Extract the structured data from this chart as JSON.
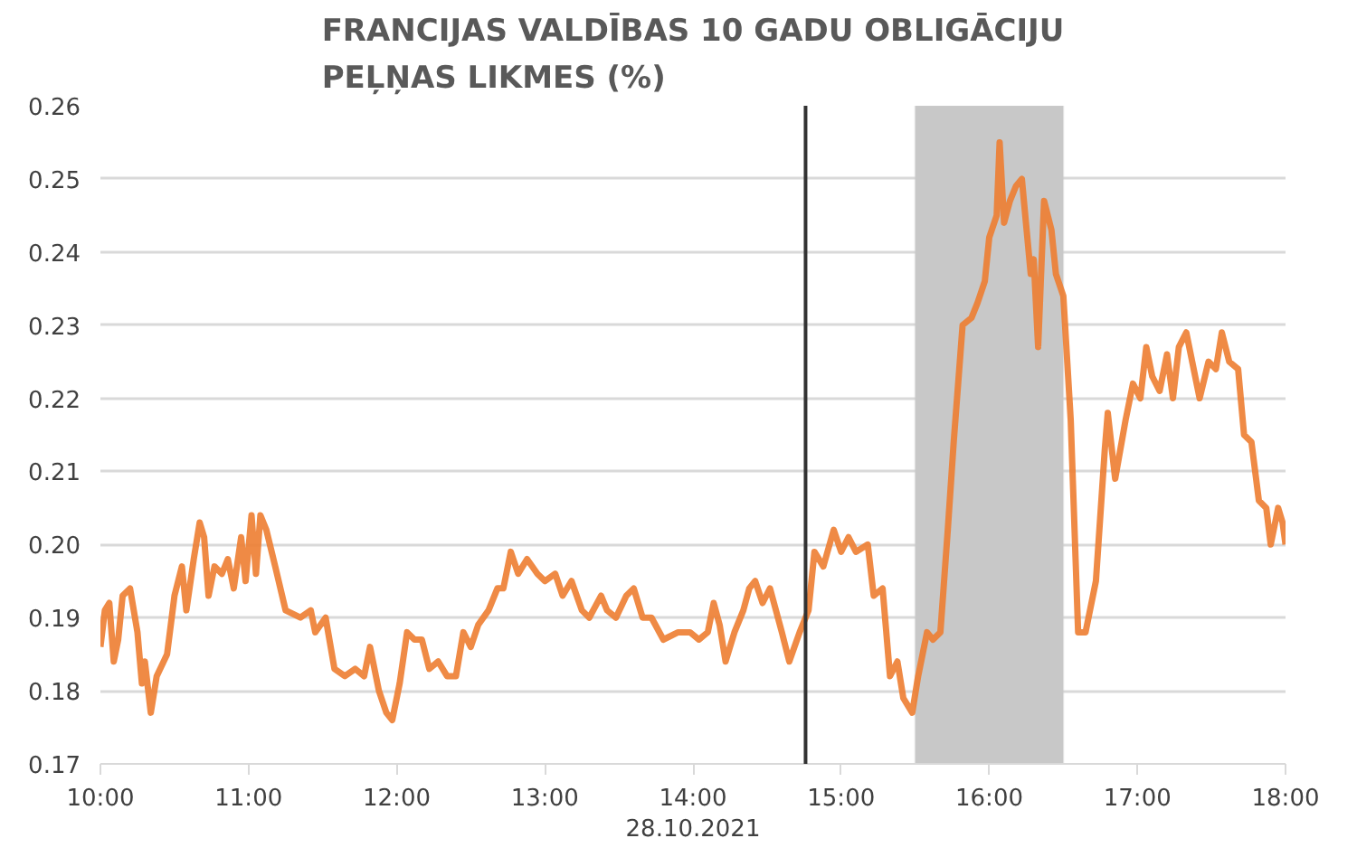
{
  "chart_data": {
    "type": "line",
    "title": "FRANCIJAS VALDĪBAS 10 GADU OBLIGĀCIJU\nPEĻŅAS LIKMES (%)",
    "xlabel": "28.10.2021",
    "x": [
      10.0,
      10.03,
      10.06,
      10.09,
      10.12,
      10.15,
      10.2,
      10.25,
      10.28,
      10.3,
      10.34,
      10.38,
      10.45,
      10.5,
      10.55,
      10.58,
      10.63,
      10.67,
      10.7,
      10.73,
      10.77,
      10.82,
      10.86,
      10.9,
      10.95,
      10.98,
      11.02,
      11.05,
      11.08,
      11.12,
      11.18,
      11.25,
      11.35,
      11.42,
      11.45,
      11.52,
      11.58,
      11.65,
      11.72,
      11.78,
      11.82,
      11.88,
      11.93,
      11.97,
      12.02,
      12.07,
      12.12,
      12.17,
      12.22,
      12.28,
      12.34,
      12.4,
      12.45,
      12.5,
      12.55,
      12.62,
      12.68,
      12.72,
      12.77,
      12.82,
      12.88,
      12.95,
      13.0,
      13.07,
      13.12,
      13.18,
      13.25,
      13.3,
      13.38,
      13.42,
      13.48,
      13.55,
      13.6,
      13.66,
      13.72,
      13.8,
      13.9,
      13.98,
      14.04,
      14.1,
      14.14,
      14.18,
      14.22,
      14.28,
      14.34,
      14.38,
      14.42,
      14.47,
      14.52,
      14.6,
      14.65,
      14.72,
      14.78,
      14.82,
      14.88,
      14.95,
      15.0,
      15.05,
      15.1,
      15.18,
      15.22,
      15.28,
      15.33,
      15.38,
      15.42,
      15.48,
      15.52,
      15.58,
      15.62,
      15.67,
      15.72,
      15.76,
      15.82,
      15.88,
      15.92,
      15.97,
      16.0,
      16.05,
      16.07,
      16.1,
      16.14,
      16.18,
      16.22,
      16.28,
      16.3,
      16.33,
      16.37,
      16.42,
      16.45,
      16.5,
      16.55,
      16.6,
      16.65,
      16.72,
      16.78,
      16.8,
      16.85,
      16.92,
      16.97,
      17.02,
      17.06,
      17.1,
      17.15,
      17.2,
      17.24,
      17.28,
      17.33,
      17.38,
      17.42,
      17.48,
      17.53,
      17.57,
      17.62,
      17.68,
      17.72,
      17.77,
      17.82,
      17.87,
      17.9,
      17.95,
      17.98,
      18.0
    ],
    "series": [
      {
        "color": "#ed7d31",
        "values": [
          0.186,
          0.191,
          0.192,
          0.184,
          0.187,
          0.193,
          0.194,
          0.188,
          0.181,
          0.184,
          0.177,
          0.182,
          0.185,
          0.193,
          0.197,
          0.191,
          0.198,
          0.203,
          0.201,
          0.193,
          0.197,
          0.196,
          0.198,
          0.194,
          0.201,
          0.195,
          0.204,
          0.196,
          0.204,
          0.202,
          0.197,
          0.191,
          0.19,
          0.191,
          0.188,
          0.19,
          0.183,
          0.182,
          0.183,
          0.182,
          0.186,
          0.18,
          0.177,
          0.176,
          0.181,
          0.188,
          0.187,
          0.187,
          0.183,
          0.184,
          0.182,
          0.182,
          0.188,
          0.186,
          0.189,
          0.191,
          0.194,
          0.194,
          0.199,
          0.196,
          0.198,
          0.196,
          0.195,
          0.196,
          0.193,
          0.195,
          0.191,
          0.19,
          0.193,
          0.191,
          0.19,
          0.193,
          0.194,
          0.19,
          0.19,
          0.187,
          0.188,
          0.188,
          0.187,
          0.188,
          0.192,
          0.189,
          0.184,
          0.188,
          0.191,
          0.194,
          0.195,
          0.192,
          0.194,
          0.188,
          0.184,
          0.188,
          0.191,
          0.199,
          0.197,
          0.202,
          0.199,
          0.201,
          0.199,
          0.2,
          0.193,
          0.194,
          0.182,
          0.184,
          0.179,
          0.177,
          0.182,
          0.188,
          0.187,
          0.188,
          0.202,
          0.214,
          0.23,
          0.231,
          0.233,
          0.236,
          0.242,
          0.245,
          0.255,
          0.244,
          0.247,
          0.249,
          0.25,
          0.237,
          0.239,
          0.227,
          0.247,
          0.243,
          0.237,
          0.234,
          0.217,
          0.188,
          0.188,
          0.195,
          0.213,
          0.218,
          0.209,
          0.217,
          0.222,
          0.22,
          0.227,
          0.223,
          0.221,
          0.226,
          0.22,
          0.227,
          0.229,
          0.224,
          0.22,
          0.225,
          0.224,
          0.229,
          0.225,
          0.224,
          0.215,
          0.214,
          0.206,
          0.205,
          0.2,
          0.205,
          0.203,
          0.2
        ]
      }
    ],
    "xlim": [
      10,
      18
    ],
    "ylim": [
      0.17,
      0.26
    ],
    "xticks": [
      {
        "value": 10,
        "label": "10:00"
      },
      {
        "value": 11,
        "label": "11:00"
      },
      {
        "value": 12,
        "label": "12:00"
      },
      {
        "value": 13,
        "label": "13:00"
      },
      {
        "value": 14,
        "label": "14:00"
      },
      {
        "value": 15,
        "label": "15:00"
      },
      {
        "value": 16,
        "label": "16:00"
      },
      {
        "value": 17,
        "label": "17:00"
      },
      {
        "value": 18,
        "label": "18:00"
      }
    ],
    "yticks": [
      {
        "value": 0.17,
        "label": "0.17"
      },
      {
        "value": 0.18,
        "label": "0.18"
      },
      {
        "value": 0.19,
        "label": "0.19"
      },
      {
        "value": 0.2,
        "label": "0.20"
      },
      {
        "value": 0.21,
        "label": "0.21"
      },
      {
        "value": 0.22,
        "label": "0.22"
      },
      {
        "value": 0.23,
        "label": "0.23"
      },
      {
        "value": 0.24,
        "label": "0.24"
      },
      {
        "value": 0.25,
        "label": "0.25"
      },
      {
        "value": 0.26,
        "label": "0.26"
      }
    ],
    "ref_lines": [
      {
        "axis": "x",
        "value": 14.76,
        "color": "#333333"
      }
    ],
    "bands": [
      {
        "axis": "x",
        "from": 15.5,
        "to": 16.5,
        "color": "#c8c8c8"
      }
    ],
    "grid": "y",
    "marker": "none",
    "line_style": "solid"
  }
}
